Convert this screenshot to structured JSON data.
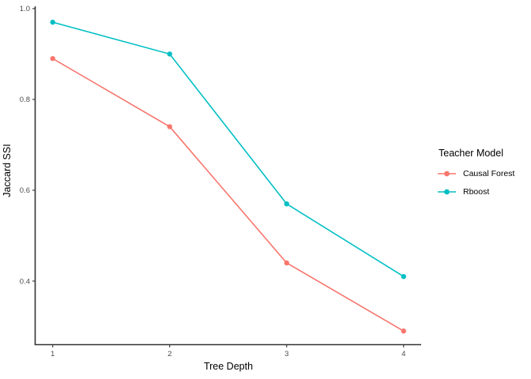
{
  "chart_data": {
    "type": "line",
    "x": [
      1,
      2,
      3,
      4
    ],
    "xticks": [
      1,
      2,
      3,
      4
    ],
    "xtick_labels": [
      "1",
      "2",
      "3",
      "4"
    ],
    "yticks": [
      0.4,
      0.6,
      0.8,
      1.0
    ],
    "ytick_labels": [
      "0.4",
      "0.6",
      "0.8",
      "1.0"
    ],
    "xlabel": "Tree Depth",
    "ylabel": "Jaccard SSI",
    "xlim": [
      0.85,
      4.15
    ],
    "ylim": [
      0.26,
      1.005
    ],
    "grid": false,
    "background": "#ffffff",
    "axis_color": "#333333",
    "tick_text_color": "#4d4d4d",
    "legend_title": "Teacher Model",
    "legend_position": "right",
    "series": [
      {
        "name": "Causal Forest",
        "color": "#F8766D",
        "values": [
          0.89,
          0.74,
          0.44,
          0.29
        ]
      },
      {
        "name": "Rboost",
        "color": "#00BFC4",
        "values": [
          0.97,
          0.9,
          0.57,
          0.41
        ]
      }
    ]
  }
}
